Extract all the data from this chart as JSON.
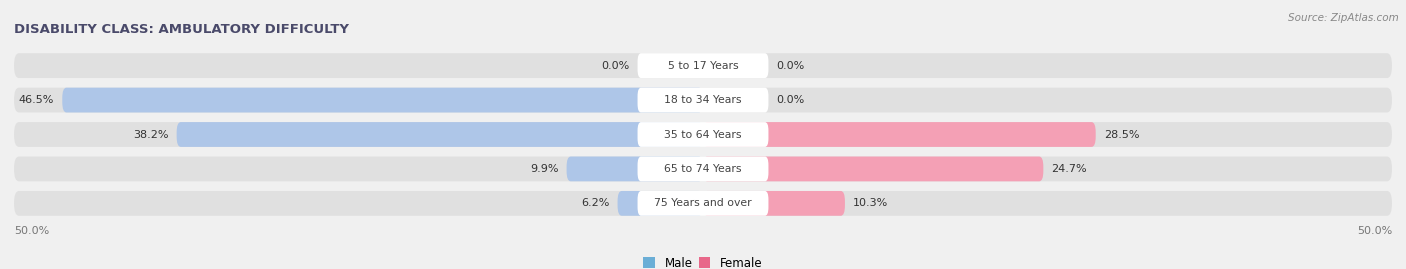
{
  "title": "DISABILITY CLASS: AMBULATORY DIFFICULTY",
  "source": "Source: ZipAtlas.com",
  "categories": [
    "5 to 17 Years",
    "18 to 34 Years",
    "35 to 64 Years",
    "65 to 74 Years",
    "75 Years and over"
  ],
  "male_values": [
    0.0,
    46.5,
    38.2,
    9.9,
    6.2
  ],
  "female_values": [
    0.0,
    0.0,
    28.5,
    24.7,
    10.3
  ],
  "male_color": "#aec6e8",
  "female_color": "#f4a0b5",
  "bar_bg_color": "#e0e0e0",
  "max_value": 50.0,
  "title_color": "#4a4a6a",
  "background_color": "#f0f0f0",
  "bar_height": 0.72,
  "legend_male_color": "#6baed6",
  "legend_female_color": "#e8688a",
  "center_label_bg": "#ffffff",
  "value_label_color": "#333333",
  "axis_label_color": "#777777"
}
